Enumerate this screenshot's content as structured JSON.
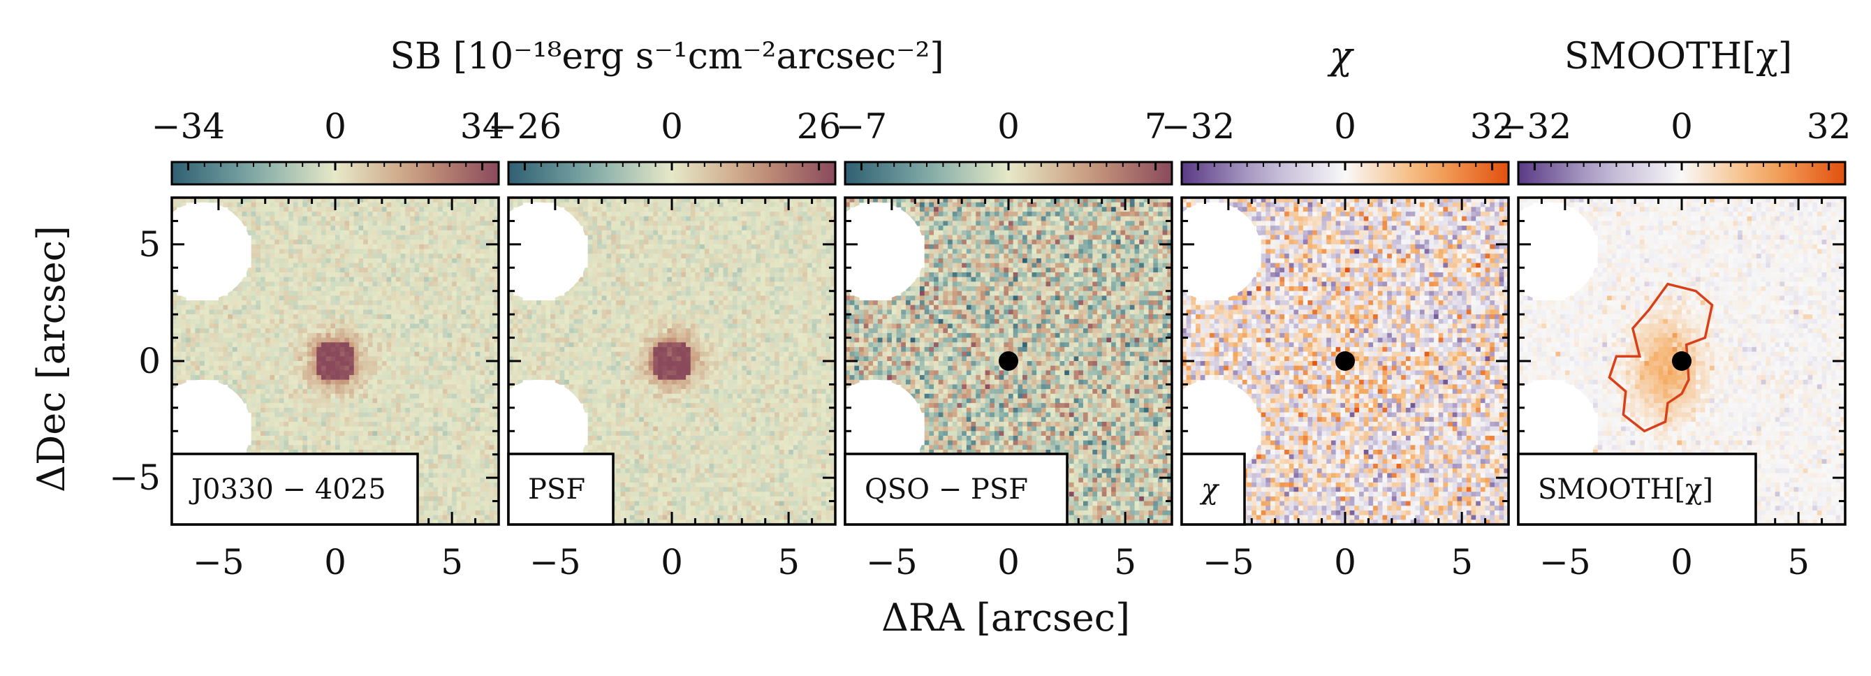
{
  "chart_data": {
    "type": "heatmap",
    "xlabel": "ΔRA [arcsec]",
    "ylabel": "ΔDec [arcsec]",
    "xlim": [
      -7,
      7
    ],
    "ylim": [
      -7,
      7
    ],
    "x_ticks": [
      -5,
      0,
      5
    ],
    "y_ticks": [
      5,
      0,
      -5
    ],
    "x_tick_labels": [
      "−5",
      "0",
      "5"
    ],
    "y_tick_labels": [
      "5",
      "0",
      "−5"
    ],
    "group_titles": {
      "sb": "SB [10⁻¹⁸erg s⁻¹cm⁻²arcsec⁻²]",
      "chi": "χ",
      "smooth": "SMOOTH[χ]"
    },
    "qso_position": [
      0,
      0
    ],
    "masked_regions": [
      {
        "center": [
          -5.7,
          4.7
        ],
        "radius": 2.1
      },
      {
        "center": [
          -5.7,
          -2.9
        ],
        "radius": 2.1
      }
    ],
    "panels": [
      {
        "label": "J0330 − 4025",
        "colormap": "teal-cream-maroon",
        "colorbar_range": [
          -34,
          34
        ],
        "colorbar_ticks": [
          "−34",
          "0",
          "34"
        ],
        "central_source": true,
        "qso_marker": false,
        "contour": false
      },
      {
        "label": "PSF",
        "colormap": "teal-cream-maroon",
        "colorbar_range": [
          -26,
          26
        ],
        "colorbar_ticks": [
          "−26",
          "0",
          "26"
        ],
        "central_source": true,
        "qso_marker": false,
        "contour": false
      },
      {
        "label": "QSO − PSF",
        "colormap": "teal-cream-maroon",
        "colorbar_range": [
          -7,
          7
        ],
        "colorbar_ticks": [
          "−7",
          "0",
          "7"
        ],
        "central_source": false,
        "qso_marker": true,
        "contour": false
      },
      {
        "label": "χ",
        "colormap": "purple-white-orange",
        "colorbar_range": [
          -32,
          32
        ],
        "colorbar_ticks": [
          "−32",
          "0",
          "32"
        ],
        "central_source": false,
        "qso_marker": true,
        "contour": false
      },
      {
        "label": "SMOOTH[χ]",
        "colormap": "purple-white-orange",
        "colorbar_range": [
          -32,
          32
        ],
        "colorbar_ticks": [
          "−32",
          "0",
          "32"
        ],
        "central_source": false,
        "qso_marker": true,
        "contour": true
      }
    ],
    "colors": {
      "diverging_sb": [
        "#2f5f72",
        "#7fa9a6",
        "#e6e8c8",
        "#c99a7c",
        "#8a4a5c"
      ],
      "diverging_chi": [
        "#5a3a85",
        "#b9aed0",
        "#f8f8f8",
        "#f5b06a",
        "#e2500e"
      ],
      "contour": "#d8401a",
      "marker": "#000000"
    }
  }
}
